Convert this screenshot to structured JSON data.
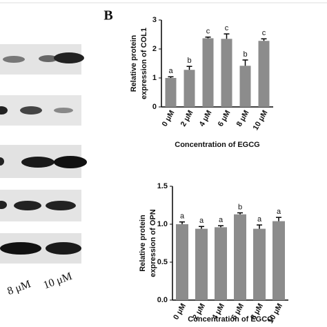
{
  "panel_label": "B",
  "blot": {
    "labels": [
      "8 μM",
      "10 μM"
    ]
  },
  "chart_data": [
    {
      "type": "bar",
      "ylabel": [
        "Relative protein",
        "expression of COL1"
      ],
      "xlabel": "Concentration of EGCG",
      "categories": [
        "0 μM",
        "2 μM",
        "4 μM",
        "6 μM",
        "8 μM",
        "10 μM"
      ],
      "values": [
        1.0,
        1.28,
        2.37,
        2.35,
        1.42,
        2.28
      ],
      "errors": [
        0.04,
        0.12,
        0.04,
        0.17,
        0.2,
        0.07
      ],
      "letters": [
        "a",
        "b",
        "c",
        "c",
        "b",
        "c"
      ],
      "color": "#8c8c8c",
      "ylim": [
        0,
        3
      ],
      "yticks": [
        0,
        1,
        2,
        3
      ]
    },
    {
      "type": "bar",
      "ylabel": [
        "Relative protein",
        "expression of OPN"
      ],
      "xlabel": "Concentration of EGCG",
      "categories": [
        "0 μM",
        "2 μM",
        "4 μM",
        "6 μM",
        "8 μM",
        "10 μM"
      ],
      "values": [
        1.0,
        0.94,
        0.96,
        1.13,
        0.94,
        1.04
      ],
      "errors": [
        0.03,
        0.03,
        0.02,
        0.02,
        0.05,
        0.05
      ],
      "letters": [
        "a",
        "a",
        "a",
        "b",
        "a",
        "a"
      ],
      "color": "#8c8c8c",
      "ylim": [
        0,
        1.5
      ],
      "yticks": [
        {
          "value": 0,
          "label": "0.0"
        },
        {
          "value": 0.5,
          "label": "0.5"
        },
        {
          "value": 1,
          "label": "1.0"
        },
        {
          "value": 1.5,
          "label": "1.5"
        }
      ]
    }
  ]
}
